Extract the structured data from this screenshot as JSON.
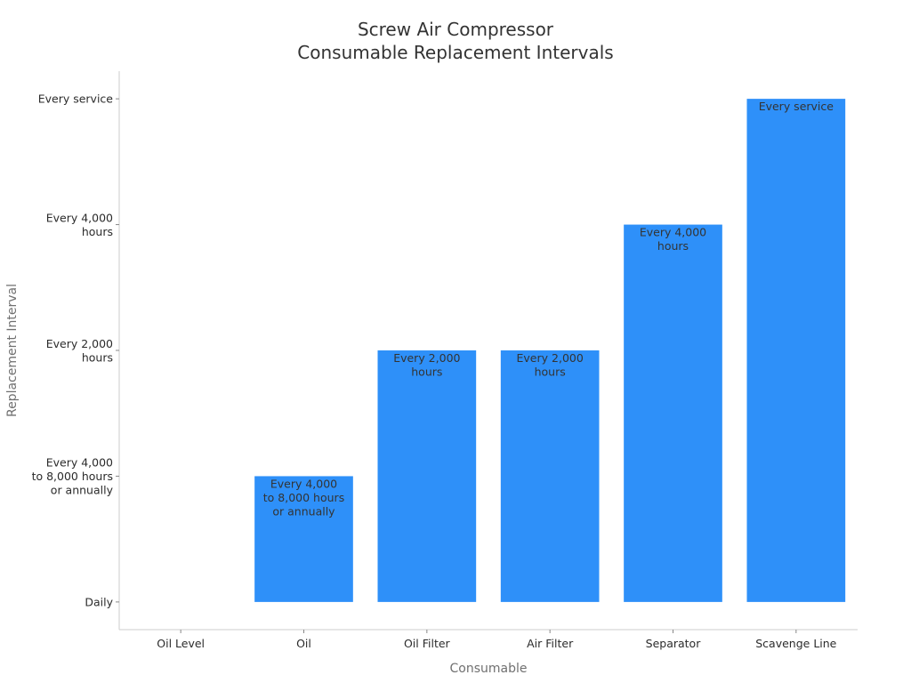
{
  "chart_data": {
    "type": "bar",
    "title": [
      "Screw Air Compressor",
      "Consumable Replacement Intervals"
    ],
    "xlabel": "Consumable",
    "ylabel": "Replacement Interval",
    "categories": [
      "Oil Level",
      "Oil",
      "Oil Filter",
      "Air Filter",
      "Separator",
      "Scavenge Line"
    ],
    "y_levels": [
      [
        "Daily"
      ],
      [
        "Every 4,000",
        "to 8,000 hours",
        "or annually"
      ],
      [
        "Every 2,000",
        "hours"
      ],
      [
        "Every 4,000",
        "hours"
      ],
      [
        "Every service"
      ]
    ],
    "values": [
      0,
      1,
      2,
      2,
      3,
      4
    ],
    "bar_labels": [
      [],
      [
        "Every 4,000",
        "to 8,000 hours",
        "or annually"
      ],
      [
        "Every 2,000",
        "hours"
      ],
      [
        "Every 2,000",
        "hours"
      ],
      [
        "Every 4,000",
        "hours"
      ],
      [
        "Every service"
      ]
    ],
    "ylim": [
      -0.22,
      4.22
    ],
    "grid": false,
    "legend": "none",
    "bar_color": "#2e90f9"
  }
}
